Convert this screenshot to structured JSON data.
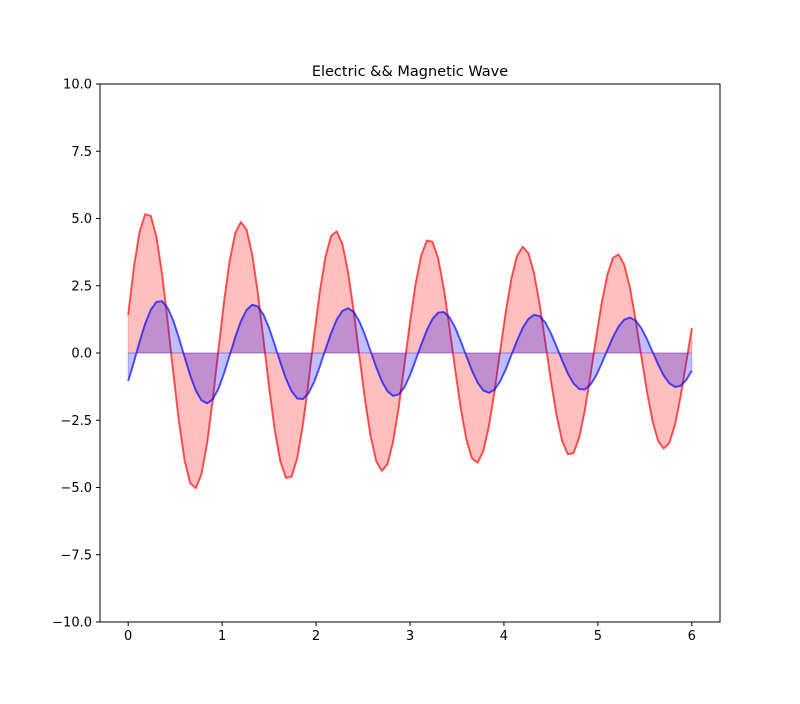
{
  "chart_data": {
    "type": "area",
    "title": "Electric && Magnetic  Wave",
    "xlabel": "",
    "ylabel": "",
    "xlim": [
      -0.3,
      6.3
    ],
    "ylim": [
      -10,
      10
    ],
    "xticks": [
      0,
      1,
      2,
      3,
      4,
      5,
      6
    ],
    "xtick_labels": [
      "0",
      "1",
      "2",
      "3",
      "4",
      "5",
      "6"
    ],
    "yticks": [
      -10,
      -7.5,
      -5,
      -2.5,
      0,
      2.5,
      5,
      7.5,
      10
    ],
    "ytick_labels": [
      "−10.0",
      "−7.5",
      "−5.0",
      "−2.5",
      "0.0",
      "2.5",
      "5.0",
      "7.5",
      "10.0"
    ],
    "grid": false,
    "series": [
      {
        "color": "#ff0000",
        "fill_to": 0,
        "amplitude": 5.3,
        "decay": 0.07,
        "frequency": 1.0,
        "phase": 0.27,
        "x_range": [
          0,
          6
        ],
        "samples": 100
      },
      {
        "color": "#0000ff",
        "fill_to": 0,
        "amplitude": 2.0,
        "decay": 0.078,
        "frequency": 1.0,
        "phase": -0.55,
        "x_range": [
          0,
          6
        ],
        "samples": 100
      }
    ]
  }
}
